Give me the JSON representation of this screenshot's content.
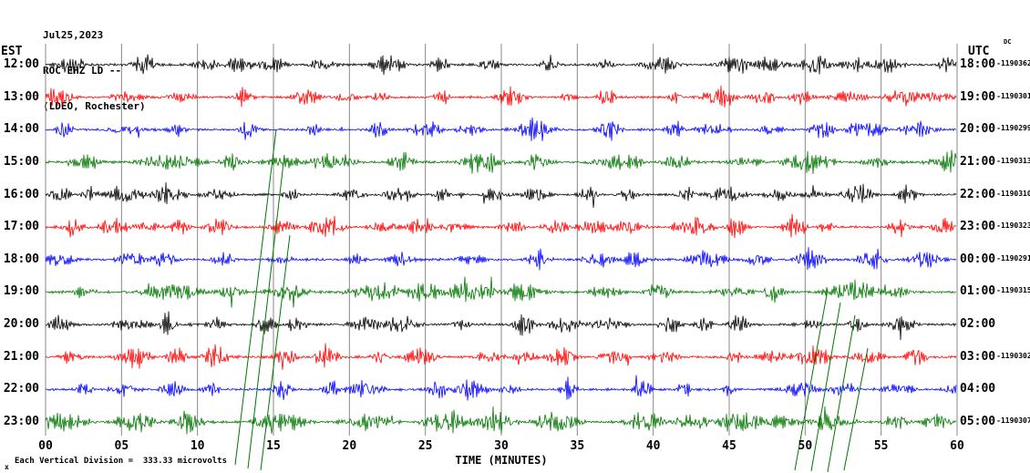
{
  "header": {
    "date": "Jul25,2023",
    "station": "ROC EHZ LD --",
    "location": "(LDEO, Rochester)"
  },
  "axes": {
    "left_label": "EST",
    "right_label": "UTC",
    "dc_label": "DC",
    "x_ticks": [
      "00",
      "05",
      "10",
      "15",
      "20",
      "25",
      "30",
      "35",
      "40",
      "45",
      "50",
      "55",
      "60"
    ],
    "x_title": "TIME (MINUTES)"
  },
  "footer": {
    "corner_glyph": "x",
    "scale_note": "Each Vertical Division =  333.33 microvolts"
  },
  "colors": {
    "black": "#000000",
    "red": "#ff0000",
    "blue": "#0000ff",
    "green": "#007700",
    "grid": "#888888"
  },
  "chart_data": {
    "type": "line",
    "subtype": "seismogram-helicorder",
    "title": "ROC EHZ LD -- (LDEO, Rochester) Jul25,2023",
    "xlabel": "TIME (MINUTES)",
    "x_range_minutes": [
      0,
      60
    ],
    "minutes_per_row": 60,
    "vertical_division_microvolts": 333.33,
    "rows": [
      {
        "est": "12:00",
        "utc": "18:00",
        "trace_id": "-1190362",
        "color": "black"
      },
      {
        "est": "13:00",
        "utc": "19:00",
        "trace_id": "-1190301",
        "color": "red"
      },
      {
        "est": "14:00",
        "utc": "20:00",
        "trace_id": "-1190299",
        "color": "blue"
      },
      {
        "est": "15:00",
        "utc": "21:00",
        "trace_id": "-1190313",
        "color": "green"
      },
      {
        "est": "16:00",
        "utc": "22:00",
        "trace_id": "-1190310",
        "color": "black"
      },
      {
        "est": "17:00",
        "utc": "23:00",
        "trace_id": "-1190323",
        "color": "red"
      },
      {
        "est": "18:00",
        "utc": "00:00",
        "trace_id": "-1190291",
        "color": "blue"
      },
      {
        "est": "19:00",
        "utc": "01:00",
        "trace_id": "-1190315",
        "color": "green"
      },
      {
        "est": "20:00",
        "utc": "02:00",
        "trace_id": "",
        "color": "black"
      },
      {
        "est": "21:00",
        "utc": "03:00",
        "trace_id": "-1190302",
        "color": "red"
      },
      {
        "est": "22:00",
        "utc": "04:00",
        "trace_id": "",
        "color": "blue"
      },
      {
        "est": "23:00",
        "utc": "05:00",
        "trace_id": "-1190307",
        "color": "green"
      }
    ],
    "offscale_event_lines": [
      {
        "x1": 258,
        "y1": 510,
        "x2": 303,
        "y2": 142
      },
      {
        "x1": 272,
        "y1": 514,
        "x2": 312,
        "y2": 170
      },
      {
        "x1": 286,
        "y1": 516,
        "x2": 318,
        "y2": 258
      },
      {
        "x1": 872,
        "y1": 516,
        "x2": 908,
        "y2": 318
      },
      {
        "x1": 890,
        "y1": 517,
        "x2": 922,
        "y2": 332
      },
      {
        "x1": 908,
        "y1": 518,
        "x2": 938,
        "y2": 346
      },
      {
        "x1": 926,
        "y1": 516,
        "x2": 952,
        "y2": 382
      }
    ],
    "note": "Continuous helicorder traces: background microseismic noise with quasi-periodic high-amplitude bursts on every row; trace colors cycle black/red/blue/green per hour."
  }
}
